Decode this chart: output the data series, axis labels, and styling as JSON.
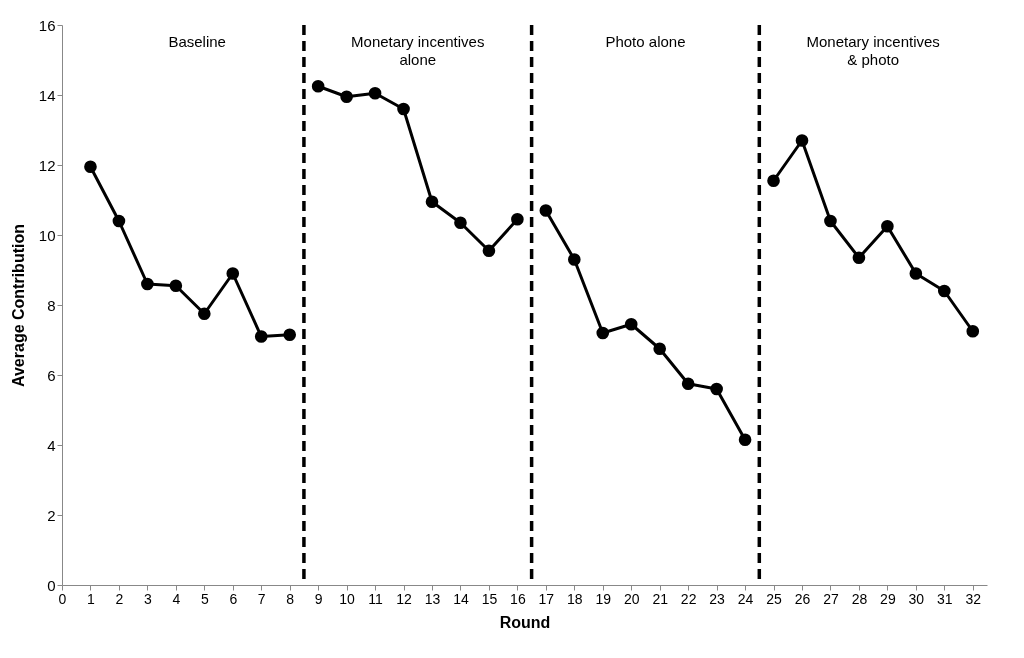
{
  "chart_data": {
    "type": "line",
    "xlabel": "Round",
    "ylabel": "Average Contribution",
    "xlim": [
      0,
      32.5
    ],
    "xticks": [
      0,
      1,
      2,
      3,
      4,
      5,
      6,
      7,
      8,
      9,
      10,
      11,
      12,
      13,
      14,
      15,
      16,
      17,
      18,
      19,
      20,
      21,
      22,
      23,
      24,
      25,
      26,
      27,
      28,
      29,
      30,
      31,
      32
    ],
    "ylim": [
      0,
      16
    ],
    "yticks": [
      0,
      2,
      4,
      6,
      8,
      10,
      12,
      14,
      16
    ],
    "grid": false,
    "marker": "circle",
    "line_style": "solid",
    "series": [
      {
        "color": "#000000",
        "x": [
          1,
          2,
          3,
          4,
          5,
          6,
          7,
          8
        ],
        "values": [
          11.95,
          10.4,
          8.6,
          8.55,
          7.75,
          8.9,
          7.1,
          7.15
        ]
      },
      {
        "color": "#000000",
        "x": [
          9,
          10,
          11,
          12,
          13,
          14,
          15,
          16
        ],
        "values": [
          14.25,
          13.95,
          14.05,
          13.6,
          10.95,
          10.35,
          9.55,
          10.45
        ]
      },
      {
        "color": "#000000",
        "x": [
          17,
          18,
          19,
          20,
          21,
          22,
          23,
          24
        ],
        "values": [
          10.7,
          9.3,
          7.2,
          7.45,
          6.75,
          5.75,
          5.6,
          4.15
        ]
      },
      {
        "color": "#000000",
        "x": [
          25,
          26,
          27,
          28,
          29,
          30,
          31,
          32
        ],
        "values": [
          11.55,
          12.7,
          10.4,
          9.35,
          10.25,
          8.9,
          8.4,
          7.25
        ]
      }
    ],
    "ref_lines": [
      {
        "axis": "x",
        "value": 8.5,
        "color": "#000000",
        "line_style": "dashed"
      },
      {
        "axis": "x",
        "value": 16.5,
        "color": "#000000",
        "line_style": "dashed"
      },
      {
        "axis": "x",
        "value": 24.5,
        "color": "#000000",
        "line_style": "dashed"
      }
    ],
    "annotations": [
      "Baseline",
      "Monetary incentives\nalone",
      "Photo alone",
      "Monetary incentives\n& photo"
    ]
  }
}
